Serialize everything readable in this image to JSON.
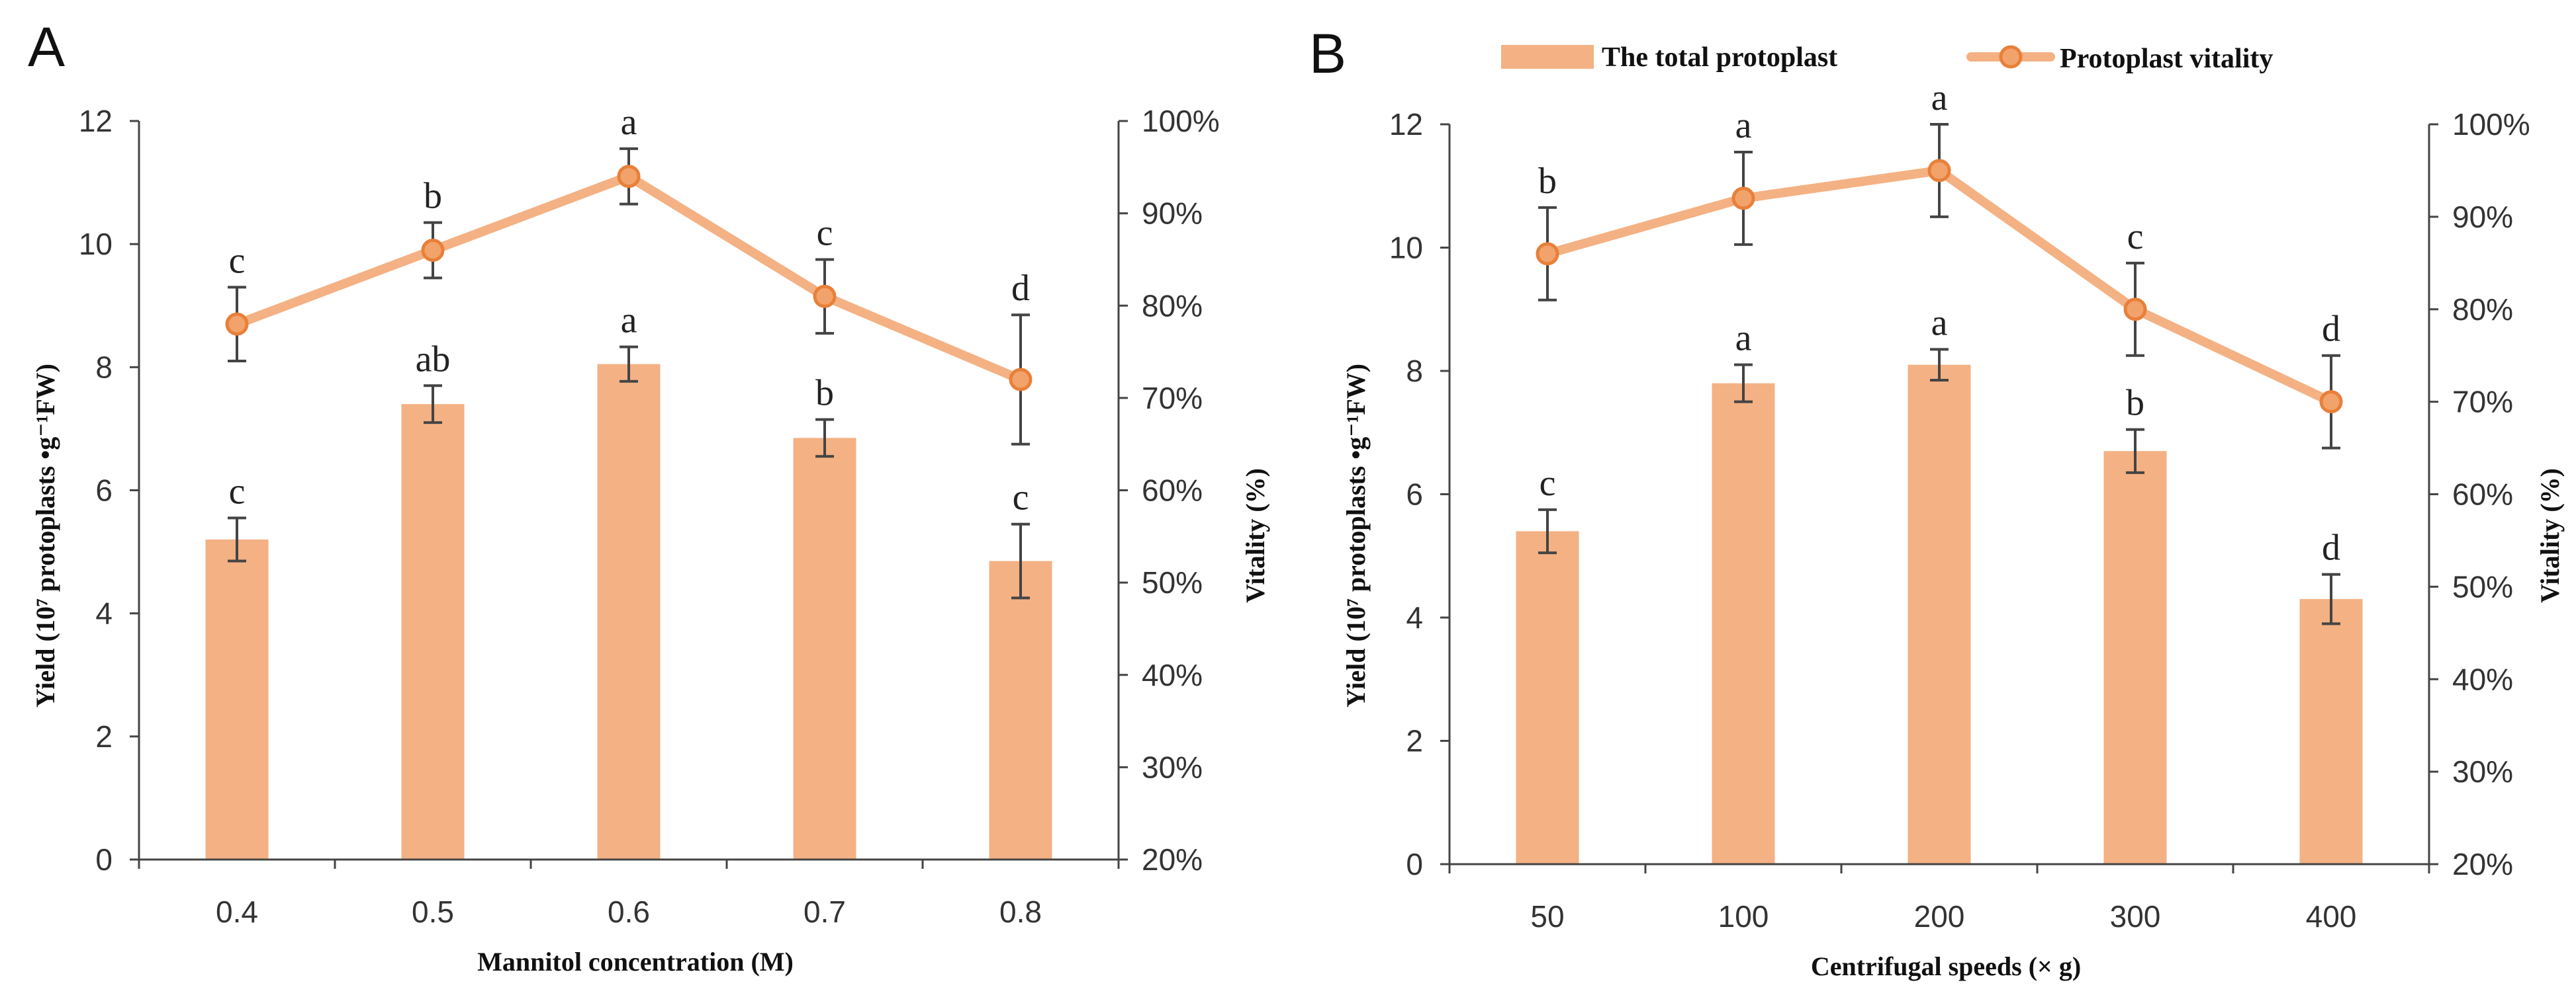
{
  "colors": {
    "bar": "#F4B183",
    "line": "#F4B183",
    "marker_fill": "#F2A36B",
    "marker_stroke": "#E8803A",
    "axis": "#444444",
    "error": "#444444"
  },
  "legend": {
    "bar_label": "The total protoplast",
    "line_label": "Protoplast vitality"
  },
  "chart_data": [
    {
      "panel": "A",
      "type": "bar+line",
      "xlabel": "Mannitol concentration (M)",
      "ylabel_left": "Yield (10⁷ protoplasts •g⁻¹FW)",
      "ylabel_right": "Vitality (%)",
      "ylim_left": [
        0,
        12
      ],
      "yticks_left": [
        "0",
        "2",
        "4",
        "6",
        "8",
        "10",
        "12"
      ],
      "ylim_right": [
        20,
        100
      ],
      "yticks_right": [
        "20%",
        "30%",
        "40%",
        "50%",
        "60%",
        "70%",
        "80%",
        "90%",
        "100%"
      ],
      "categories": [
        "0.4",
        "0.5",
        "0.6",
        "0.7",
        "0.8"
      ],
      "yield": [
        5.2,
        7.4,
        8.05,
        6.85,
        4.85
      ],
      "yield_err": [
        0.35,
        0.3,
        0.28,
        0.3,
        0.6
      ],
      "yield_sig": [
        "c",
        "ab",
        "a",
        "b",
        "c"
      ],
      "vitality": [
        78,
        86,
        94,
        81,
        72
      ],
      "vitality_err": [
        4,
        3,
        3,
        4,
        7
      ],
      "vitality_sig": [
        "c",
        "b",
        "a",
        "c",
        "d"
      ]
    },
    {
      "panel": "B",
      "type": "bar+line",
      "xlabel": "Centrifugal  speeds (× g)",
      "ylabel_left": "Yield (10⁷ protoplasts •g⁻¹FW)",
      "ylabel_right": "Vitality (%)",
      "ylim_left": [
        0,
        12
      ],
      "yticks_left": [
        "0",
        "2",
        "4",
        "6",
        "8",
        "10",
        "12"
      ],
      "ylim_right": [
        20,
        100
      ],
      "yticks_right": [
        "20%",
        "30%",
        "40%",
        "50%",
        "60%",
        "70%",
        "80%",
        "90%",
        "100%"
      ],
      "categories": [
        "50",
        "100",
        "200",
        "300",
        "400"
      ],
      "yield": [
        5.4,
        7.8,
        8.1,
        6.7,
        4.3
      ],
      "yield_err": [
        0.35,
        0.3,
        0.25,
        0.35,
        0.4
      ],
      "yield_sig": [
        "c",
        "a",
        "a",
        "b",
        "d"
      ],
      "vitality": [
        86,
        92,
        95,
        80,
        70
      ],
      "vitality_err": [
        5,
        5,
        5,
        5,
        5
      ],
      "vitality_sig": [
        "b",
        "a",
        "a",
        "c",
        "d"
      ]
    }
  ]
}
